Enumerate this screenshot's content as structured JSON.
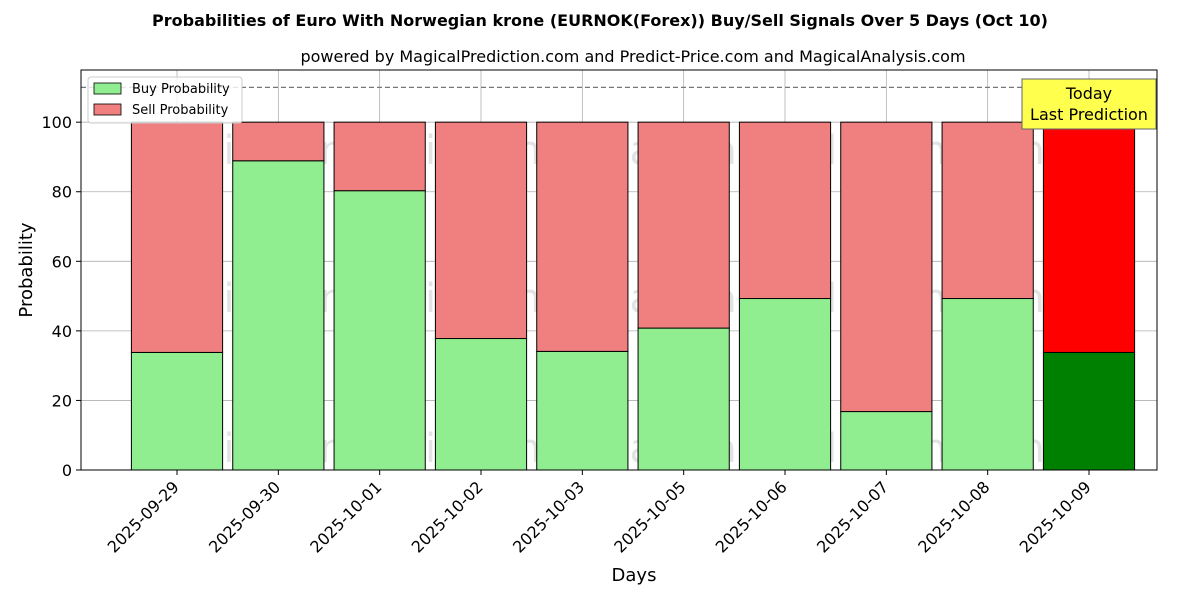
{
  "chart_data": {
    "type": "bar",
    "stacked": true,
    "title": "Probabilities of Euro With Norwegian krone (EURNOK(Forex)) Buy/Sell Signals Over 5 Days (Oct 10)",
    "subtitle": "powered by MagicalPrediction.com and Predict-Price.com and MagicalAnalysis.com",
    "xlabel": "Days",
    "ylabel": "Probability",
    "ylim": [
      0,
      115
    ],
    "yticks": [
      0,
      20,
      40,
      60,
      80,
      100
    ],
    "grid": true,
    "legend_position": "top-left",
    "categories": [
      "2025-09-29",
      "2025-09-30",
      "2025-10-01",
      "2025-10-02",
      "2025-10-03",
      "2025-10-05",
      "2025-10-06",
      "2025-10-07",
      "2025-10-08",
      "2025-10-09"
    ],
    "series": [
      {
        "name": "Buy Probability",
        "values": [
          33.8,
          88.9,
          80.3,
          37.8,
          34.1,
          40.8,
          49.3,
          16.8,
          49.3,
          33.8
        ]
      },
      {
        "name": "Sell Probability",
        "values": [
          66.2,
          11.1,
          19.7,
          62.2,
          65.9,
          59.2,
          50.7,
          83.2,
          50.7,
          66.2
        ]
      }
    ],
    "colors": {
      "buy": "#90ee90",
      "sell": "#f08080",
      "buy_highlight": "#008000",
      "sell_highlight": "#ff0000",
      "annotation_bg": "#ffff4d"
    },
    "highlight_index": 9,
    "reference_line": 110,
    "annotation": {
      "line1": "Today",
      "line2": "Last Prediction"
    },
    "watermarks": [
      "MagicalAnalysis.com",
      "MagicalPrediction.com"
    ]
  }
}
